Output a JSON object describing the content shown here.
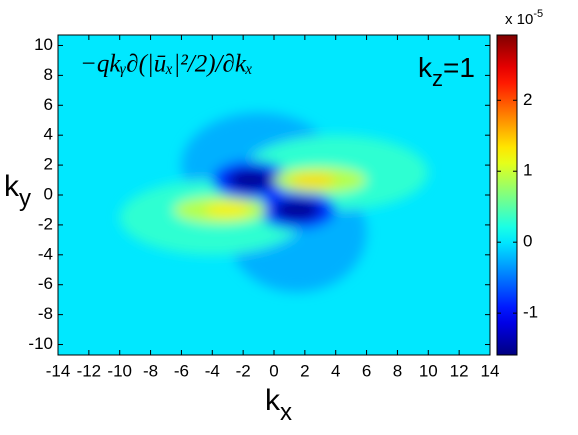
{
  "chart_data": {
    "type": "contour",
    "title": "−qkᵧ∂(|ūₓ|²/2)/∂kₓ",
    "annotation": {
      "base": "k",
      "sub": "z",
      "rest": "=1"
    },
    "xlabel": {
      "base": "k",
      "sub": "x"
    },
    "ylabel": {
      "base": "k",
      "sub": "y"
    },
    "xlim": [
      -14,
      14
    ],
    "ylim": [
      -10.7,
      10.7
    ],
    "xticks": [
      -14,
      -12,
      -10,
      -8,
      -6,
      -4,
      -2,
      0,
      2,
      4,
      6,
      8,
      10,
      12,
      14
    ],
    "yticks": [
      -10,
      -8,
      -6,
      -4,
      -2,
      0,
      2,
      4,
      6,
      8,
      10
    ],
    "colormap": "jet",
    "background_value": 0,
    "clim": [
      -1.59,
      2.92
    ],
    "cticks": [
      -1,
      0,
      1,
      2
    ],
    "cscale": {
      "base": "x 10",
      "exp": "-5"
    },
    "blobs": [
      {
        "x": -1,
        "y": 2,
        "rx": 5,
        "ry": 3.5,
        "value": -0.25
      },
      {
        "x": 1.5,
        "y": -2.5,
        "rx": 4.5,
        "ry": 4,
        "value": -0.25
      },
      {
        "x": 4,
        "y": 1.5,
        "rx": 6,
        "ry": 2.5,
        "value": 0.3
      },
      {
        "x": -4,
        "y": -1.5,
        "rx": 6,
        "ry": 2.5,
        "value": 0.3
      },
      {
        "x": -1.5,
        "y": 1,
        "rx": 2.5,
        "ry": 1.3,
        "value": -0.8
      },
      {
        "x": 1.5,
        "y": -1,
        "rx": 2.5,
        "ry": 1.3,
        "value": -0.8
      },
      {
        "x": 3,
        "y": 1,
        "rx": 3,
        "ry": 0.9,
        "value": 0.9
      },
      {
        "x": -3.5,
        "y": -1,
        "rx": 3,
        "ry": 0.9,
        "value": 0.9
      },
      {
        "x": -1.5,
        "y": 1,
        "rx": 1.5,
        "ry": 0.7,
        "value": -1.5
      },
      {
        "x": 1.5,
        "y": -1,
        "rx": 1.5,
        "ry": 0.7,
        "value": -1.5
      },
      {
        "x": 2.5,
        "y": 1,
        "rx": 1.5,
        "ry": 0.4,
        "value": 1.4
      },
      {
        "x": -3,
        "y": -1,
        "rx": 1.5,
        "ry": 0.4,
        "value": 1.3
      }
    ]
  }
}
